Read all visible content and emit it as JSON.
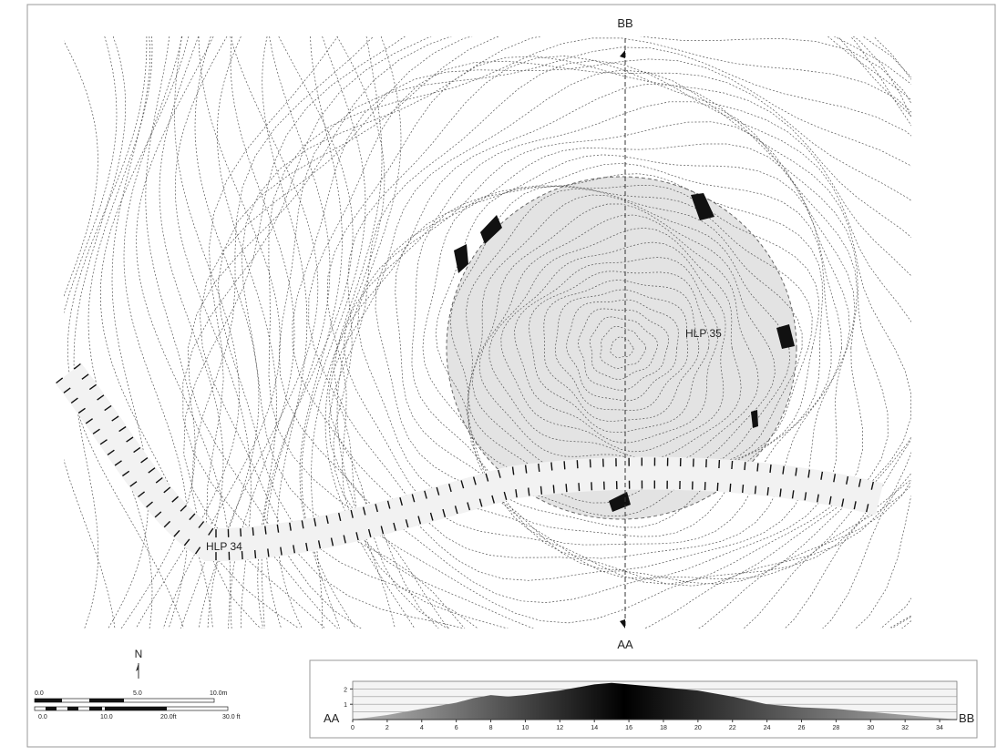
{
  "map": {
    "labels": {
      "top_section": "BB",
      "bottom_section": "AA",
      "enclosure": "HLP 35",
      "ditch": "HLP 34"
    },
    "north": "N",
    "scale": {
      "metric": [
        "0.0",
        "5.0",
        "10.0m"
      ],
      "imperial": [
        "0.0",
        "10.0",
        "20.0ft",
        "30.0 ft"
      ]
    }
  },
  "profile": {
    "start": "AA",
    "end": "BB",
    "xlim": [
      0,
      35
    ],
    "ylim": [
      0,
      2.5
    ],
    "xticks": [
      0,
      2,
      4,
      6,
      8,
      10,
      12,
      14,
      16,
      18,
      20,
      22,
      24,
      26,
      28,
      30,
      32,
      34
    ],
    "yticks": [
      1,
      2
    ],
    "x": [
      0,
      2,
      4,
      6,
      7,
      8,
      9,
      10,
      12,
      14,
      15,
      16,
      18,
      20,
      22,
      24,
      26,
      28,
      30,
      32,
      34,
      35
    ],
    "values": [
      0,
      0.3,
      0.7,
      1.1,
      1.4,
      1.6,
      1.5,
      1.6,
      1.9,
      2.3,
      2.4,
      2.3,
      2.1,
      1.9,
      1.5,
      1.0,
      0.8,
      0.7,
      0.5,
      0.3,
      0.1,
      0
    ]
  }
}
